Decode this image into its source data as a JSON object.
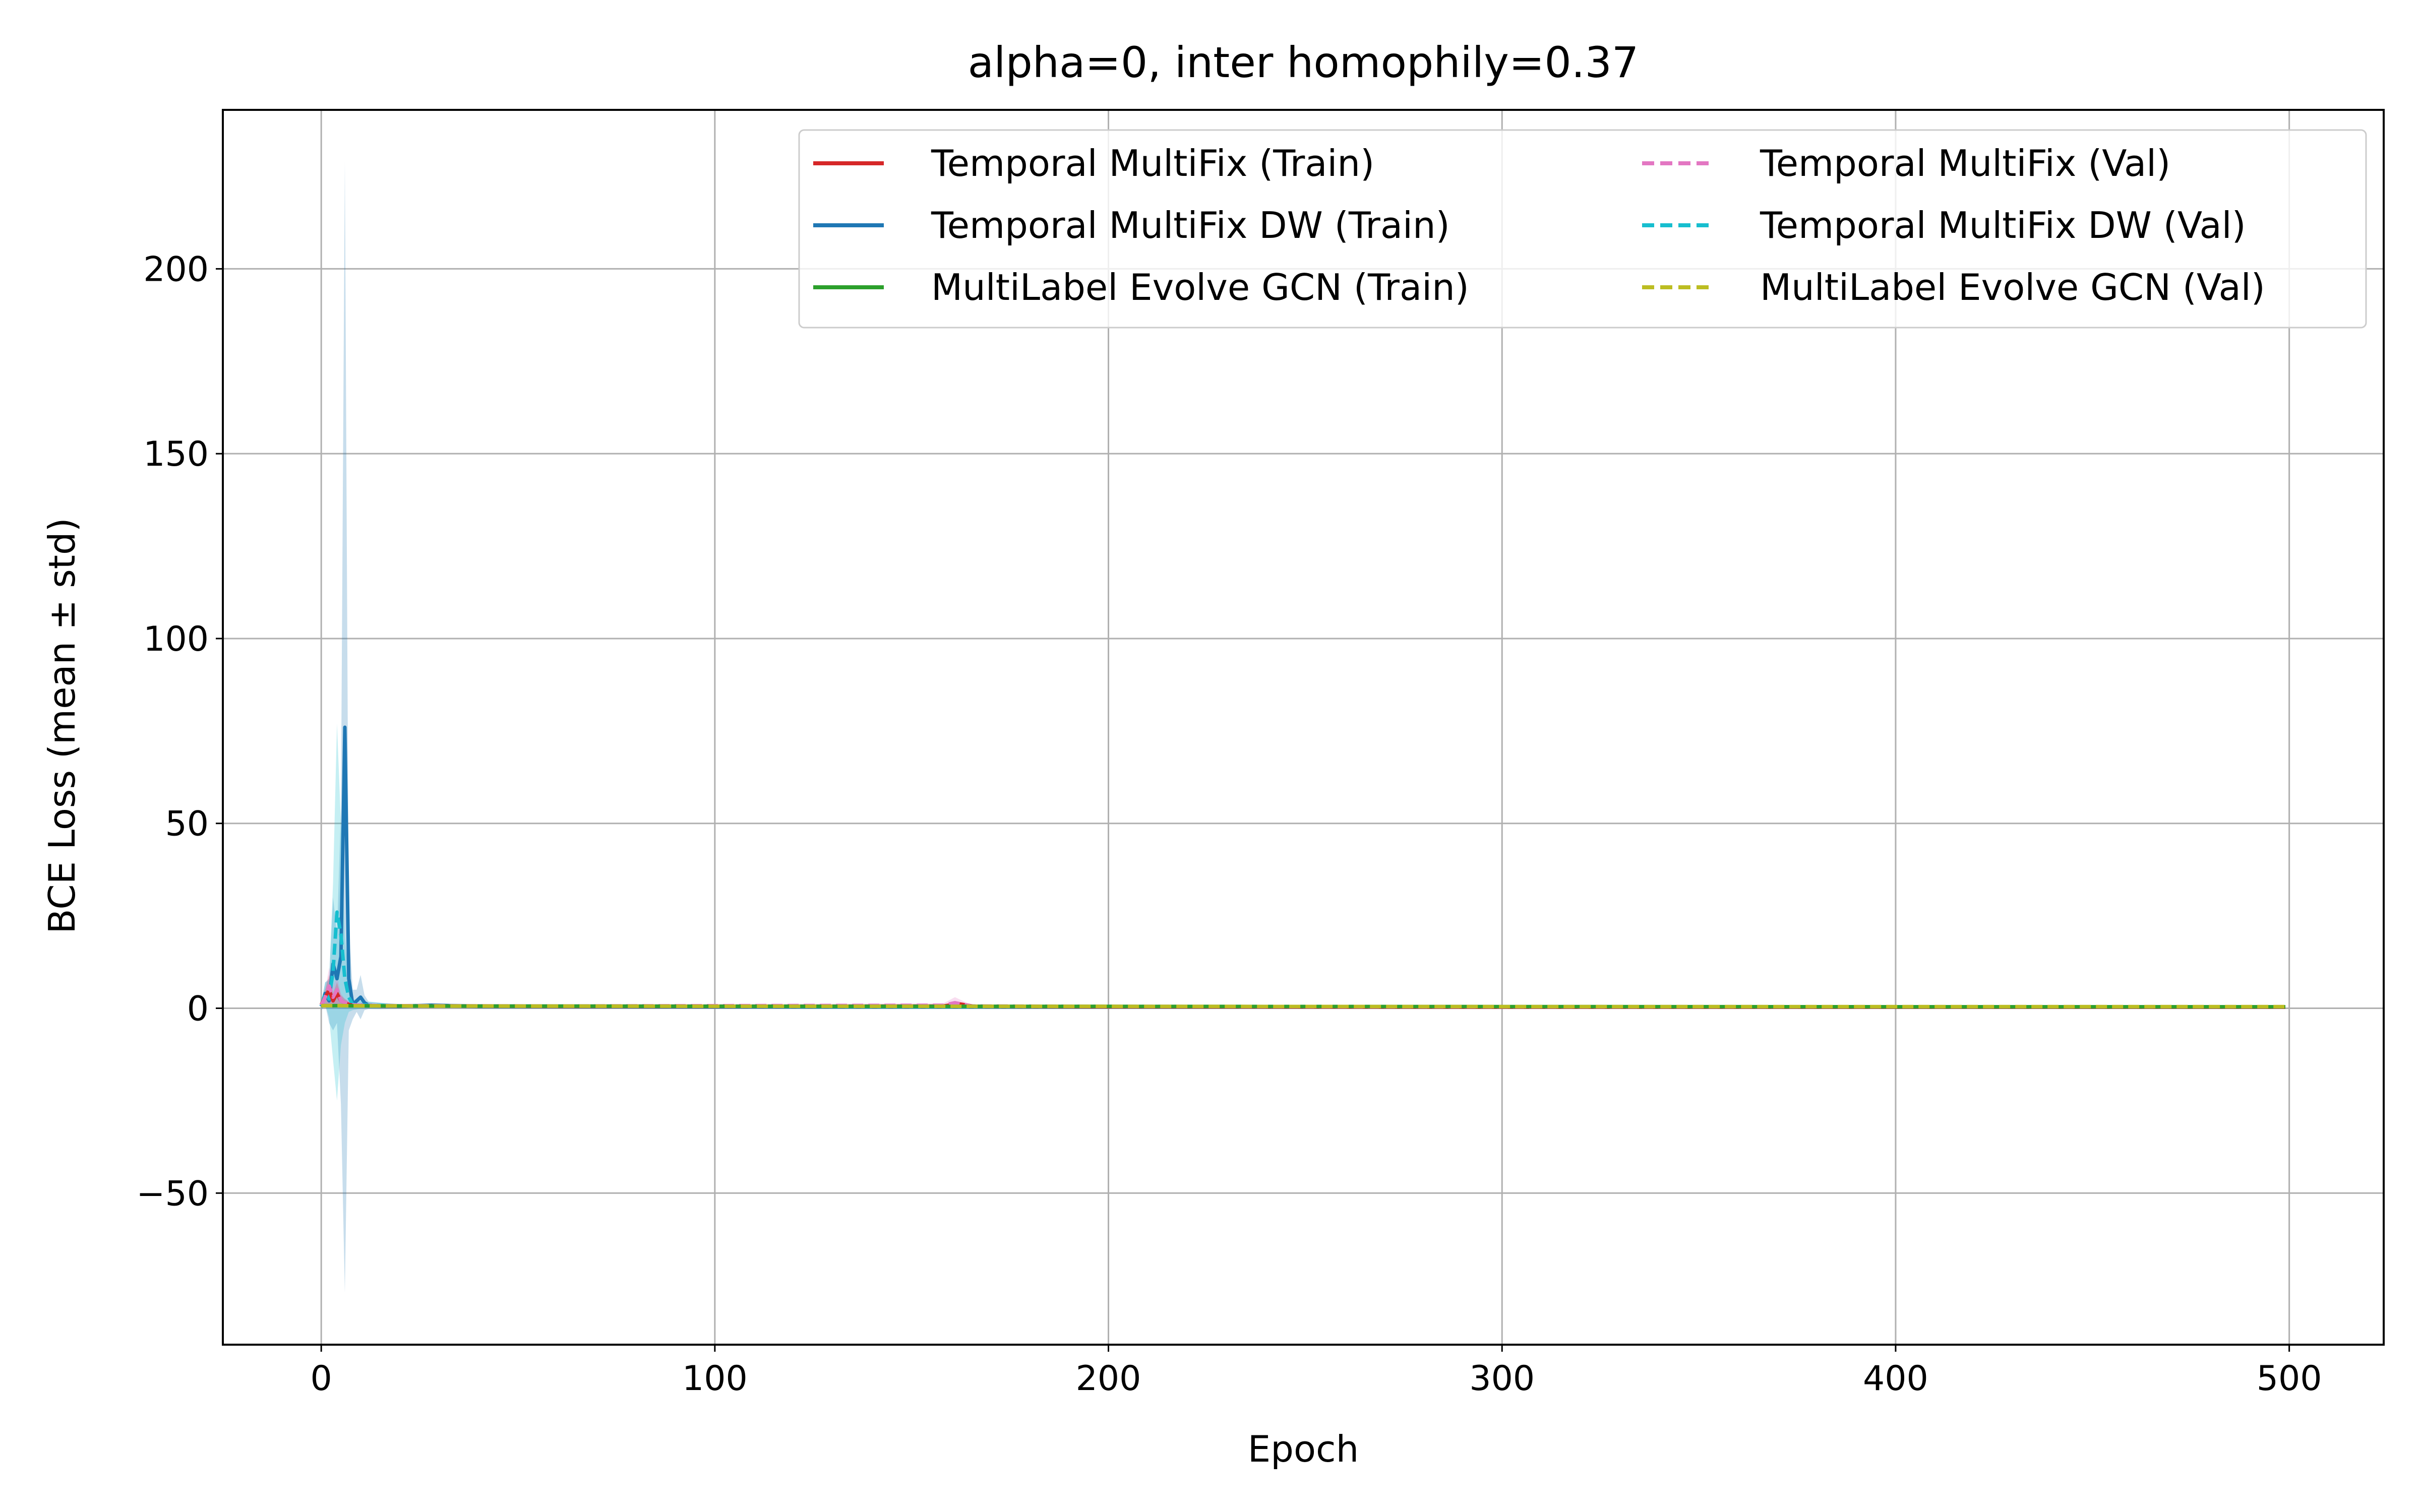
{
  "chart_data": {
    "type": "line",
    "title": "alpha=0, inter homophily=0.37",
    "xlabel": "Epoch",
    "ylabel": "BCE Loss (mean ± std)",
    "xlim": [
      -25,
      524
    ],
    "ylim": [
      -91,
      243
    ],
    "xticks": [
      0,
      100,
      200,
      300,
      400,
      500
    ],
    "yticks": [
      -50,
      0,
      50,
      100,
      150,
      200
    ],
    "xtick_labels": [
      "0",
      "100",
      "200",
      "300",
      "400",
      "500"
    ],
    "ytick_labels": [
      "−50",
      "0",
      "50",
      "100",
      "150",
      "200"
    ],
    "grid": true,
    "legend": {
      "placement": "top-right",
      "columns": 2
    },
    "series": [
      {
        "name": "Temporal MultiFix (Train)",
        "color": "#d62728",
        "style": "solid",
        "points": [
          [
            0,
            1.0
          ],
          [
            1,
            3.0
          ],
          [
            2,
            5.0
          ],
          [
            3,
            2.0
          ],
          [
            4,
            4.0
          ],
          [
            5,
            2.0
          ],
          [
            6,
            1.5
          ],
          [
            7,
            1.0
          ],
          [
            8,
            0.8
          ],
          [
            10,
            0.7
          ],
          [
            15,
            0.6
          ],
          [
            30,
            0.6
          ],
          [
            60,
            0.5
          ],
          [
            100,
            0.5
          ],
          [
            158,
            0.6
          ],
          [
            162,
            1.2
          ],
          [
            166,
            0.5
          ],
          [
            200,
            0.4
          ],
          [
            300,
            0.3
          ],
          [
            400,
            0.3
          ],
          [
            499,
            0.3
          ]
        ],
        "band": [
          [
            0,
            0.5
          ],
          [
            1,
            2.0
          ],
          [
            2,
            4.0
          ],
          [
            3,
            2.0
          ],
          [
            4,
            3.0
          ],
          [
            5,
            1.5
          ],
          [
            6,
            1.0
          ],
          [
            8,
            0.5
          ],
          [
            30,
            0.4
          ],
          [
            200,
            0.3
          ],
          [
            499,
            0.3
          ]
        ]
      },
      {
        "name": "Temporal MultiFix DW (Train)",
        "color": "#1f77b4",
        "style": "solid",
        "points": [
          [
            0,
            0.5
          ],
          [
            1,
            4.0
          ],
          [
            2,
            2.0
          ],
          [
            3,
            12.0
          ],
          [
            4,
            8.0
          ],
          [
            5,
            14.0
          ],
          [
            6,
            76.0
          ],
          [
            7,
            8.0
          ],
          [
            8,
            1.0
          ],
          [
            9,
            2.0
          ],
          [
            10,
            3.0
          ],
          [
            11,
            1.5
          ],
          [
            12,
            0.8
          ],
          [
            15,
            0.6
          ],
          [
            20,
            0.5
          ],
          [
            28,
            0.8
          ],
          [
            40,
            0.5
          ],
          [
            100,
            0.4
          ],
          [
            200,
            0.35
          ],
          [
            300,
            0.3
          ],
          [
            400,
            0.3
          ],
          [
            499,
            0.3
          ]
        ],
        "band": [
          [
            0,
            1.0
          ],
          [
            1,
            3.0
          ],
          [
            2,
            6.0
          ],
          [
            3,
            18.0
          ],
          [
            4,
            12.0
          ],
          [
            5,
            40.0
          ],
          [
            6,
            153.0
          ],
          [
            7,
            14.0
          ],
          [
            8,
            4.0
          ],
          [
            9,
            3.0
          ],
          [
            10,
            6.0
          ],
          [
            11,
            2.0
          ],
          [
            12,
            1.0
          ],
          [
            20,
            0.6
          ],
          [
            499,
            0.4
          ]
        ]
      },
      {
        "name": "MultiLabel Evolve GCN (Train)",
        "color": "#2ca02c",
        "style": "solid",
        "points": [
          [
            0,
            0.7
          ],
          [
            5,
            0.7
          ],
          [
            10,
            0.65
          ],
          [
            30,
            0.6
          ],
          [
            100,
            0.55
          ],
          [
            200,
            0.5
          ],
          [
            300,
            0.45
          ],
          [
            400,
            0.4
          ],
          [
            499,
            0.4
          ]
        ],
        "band": [
          [
            0,
            0.2
          ],
          [
            499,
            0.1
          ]
        ]
      },
      {
        "name": "Temporal MultiFix (Val)",
        "color": "#e377c2",
        "style": "dashed",
        "points": [
          [
            0,
            0.8
          ],
          [
            1,
            3.0
          ],
          [
            2,
            6.0
          ],
          [
            3,
            3.0
          ],
          [
            4,
            5.0
          ],
          [
            5,
            2.0
          ],
          [
            6,
            1.5
          ],
          [
            8,
            0.9
          ],
          [
            15,
            0.7
          ],
          [
            60,
            0.6
          ],
          [
            158,
            0.8
          ],
          [
            161,
            1.5
          ],
          [
            165,
            0.6
          ],
          [
            200,
            0.5
          ],
          [
            300,
            0.4
          ],
          [
            400,
            0.4
          ],
          [
            499,
            0.4
          ]
        ],
        "band": [
          [
            0,
            0.5
          ],
          [
            1,
            2.0
          ],
          [
            2,
            5.0
          ],
          [
            3,
            3.0
          ],
          [
            4,
            4.0
          ],
          [
            5,
            2.0
          ],
          [
            6,
            1.0
          ],
          [
            8,
            0.5
          ],
          [
            158,
            0.5
          ],
          [
            161,
            1.5
          ],
          [
            165,
            0.4
          ],
          [
            499,
            0.3
          ]
        ]
      },
      {
        "name": "Temporal MultiFix DW (Val)",
        "color": "#17becf",
        "style": "dashed",
        "points": [
          [
            0,
            0.6
          ],
          [
            1,
            4.0
          ],
          [
            2,
            2.5
          ],
          [
            3,
            10.0
          ],
          [
            4,
            26.0
          ],
          [
            5,
            20.0
          ],
          [
            6,
            8.0
          ],
          [
            7,
            3.0
          ],
          [
            8,
            1.0
          ],
          [
            10,
            0.9
          ],
          [
            20,
            0.6
          ],
          [
            100,
            0.5
          ],
          [
            200,
            0.4
          ],
          [
            300,
            0.4
          ],
          [
            400,
            0.4
          ],
          [
            499,
            0.4
          ]
        ],
        "band": [
          [
            0,
            1.0
          ],
          [
            1,
            3.0
          ],
          [
            2,
            5.0
          ],
          [
            3,
            24.0
          ],
          [
            4,
            51.0
          ],
          [
            5,
            30.0
          ],
          [
            6,
            12.0
          ],
          [
            7,
            4.0
          ],
          [
            8,
            1.5
          ],
          [
            10,
            1.0
          ],
          [
            20,
            0.5
          ],
          [
            499,
            0.4
          ]
        ]
      },
      {
        "name": "MultiLabel Evolve GCN (Val)",
        "color": "#bcbd22",
        "style": "dashed",
        "points": [
          [
            0,
            0.7
          ],
          [
            5,
            0.7
          ],
          [
            10,
            0.65
          ],
          [
            30,
            0.6
          ],
          [
            100,
            0.55
          ],
          [
            200,
            0.5
          ],
          [
            300,
            0.45
          ],
          [
            400,
            0.45
          ],
          [
            499,
            0.45
          ]
        ],
        "band": [
          [
            0,
            0.2
          ],
          [
            499,
            0.1
          ]
        ]
      }
    ]
  }
}
